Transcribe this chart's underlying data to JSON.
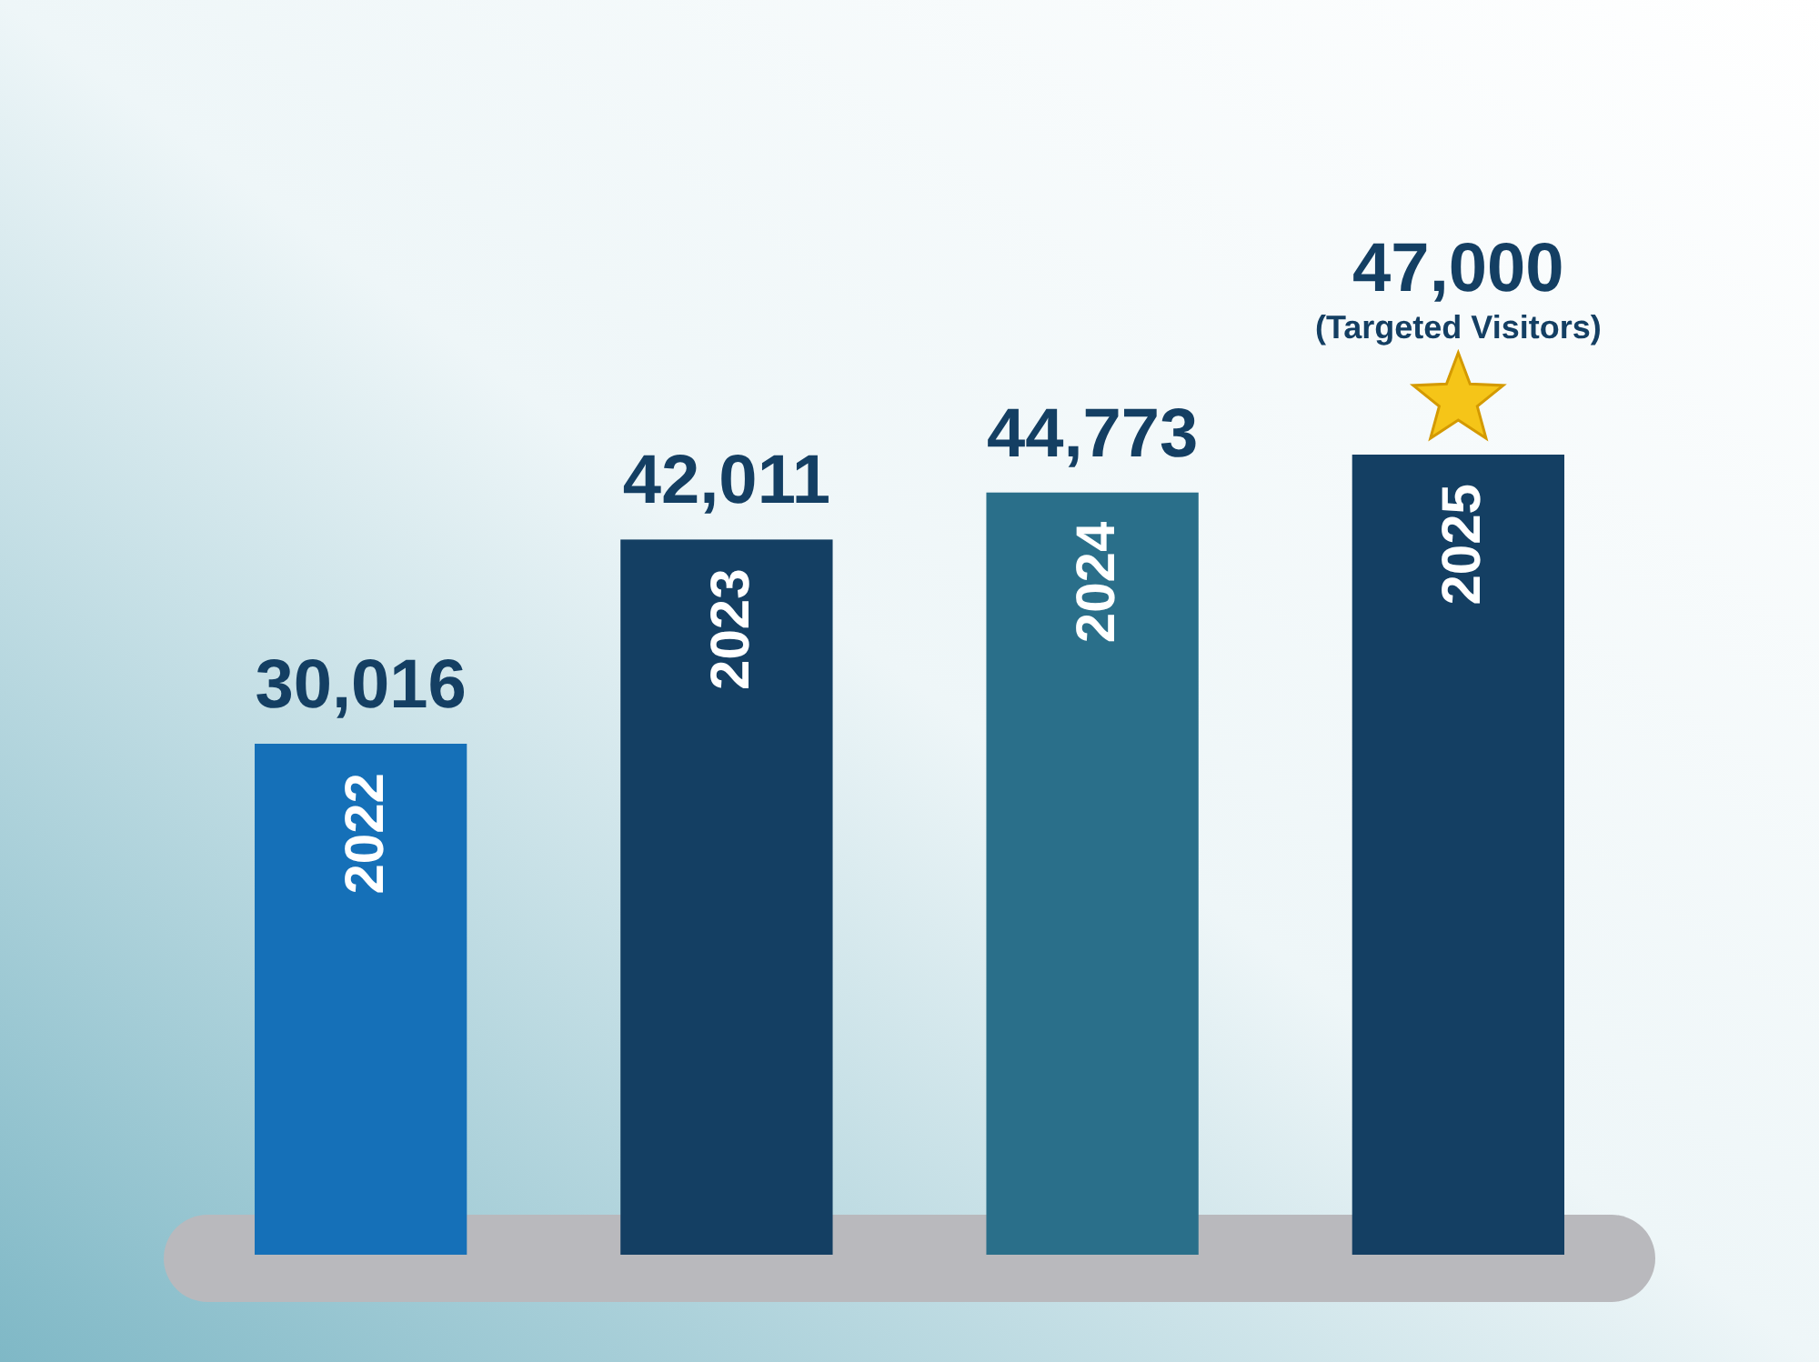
{
  "chart_data": {
    "type": "bar",
    "categories": [
      "2022",
      "2023",
      "2024",
      "2025"
    ],
    "values": [
      30016,
      42011,
      44773,
      47000
    ],
    "colors": [
      "#1570b8",
      "#143f63",
      "#2a6f8a",
      "#143f63"
    ],
    "value_labels": [
      "30,016",
      "42,011",
      "44,773",
      "47,000"
    ],
    "annotations": [
      "(Targeted Visitors)"
    ]
  }
}
